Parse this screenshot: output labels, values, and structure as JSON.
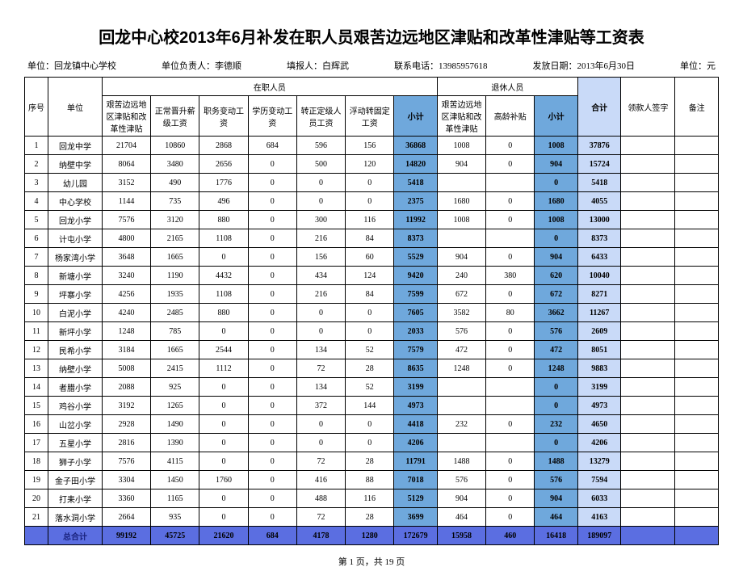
{
  "title": "回龙中心校2013年6月补发在职人员艰苦边远地区津贴和改革性津贴等工资表",
  "meta": {
    "org_label": "单位：回龙镇中心学校",
    "leader_label": "单位负责人：李德顺",
    "filler_label": "填报人：白辉武",
    "phone_label": "联系电话：13985957618",
    "date_label": "发放日期：2013年6月30日",
    "unit_label": "单位：元"
  },
  "headers": {
    "seq": "序号",
    "unit": "单位",
    "emp_group": "在职人员",
    "ret_group": "退休人员",
    "emp_cols": [
      "艰苦边远地区津贴和改革性津贴",
      "正常晋升薪级工资",
      "职务变动工资",
      "学历变动工资",
      "转正定级人员工资",
      "浮动转固定工资"
    ],
    "subtotal": "小计",
    "ret_cols": [
      "艰苦边远地区津贴和改革性津贴",
      "高龄补贴"
    ],
    "total": "合计",
    "sign": "领款人签字",
    "note": "备注"
  },
  "rows": [
    {
      "seq": "1",
      "unit": "回龙中学",
      "c": [
        "21704",
        "10860",
        "2868",
        "684",
        "596",
        "156"
      ],
      "sub1": "36868",
      "r": [
        "1008",
        "0"
      ],
      "sub2": "1008",
      "tot": "37876"
    },
    {
      "seq": "2",
      "unit": "纳壁中学",
      "c": [
        "8064",
        "3480",
        "2656",
        "0",
        "500",
        "120"
      ],
      "sub1": "14820",
      "r": [
        "904",
        "0"
      ],
      "sub2": "904",
      "tot": "15724"
    },
    {
      "seq": "3",
      "unit": "幼儿园",
      "c": [
        "3152",
        "490",
        "1776",
        "0",
        "0",
        "0"
      ],
      "sub1": "5418",
      "r": [
        "",
        ""
      ],
      "sub2": "0",
      "tot": "5418"
    },
    {
      "seq": "4",
      "unit": "中心学校",
      "c": [
        "1144",
        "735",
        "496",
        "0",
        "0",
        "0"
      ],
      "sub1": "2375",
      "r": [
        "1680",
        "0"
      ],
      "sub2": "1680",
      "tot": "4055"
    },
    {
      "seq": "5",
      "unit": "回龙小学",
      "c": [
        "7576",
        "3120",
        "880",
        "0",
        "300",
        "116"
      ],
      "sub1": "11992",
      "r": [
        "1008",
        "0"
      ],
      "sub2": "1008",
      "tot": "13000"
    },
    {
      "seq": "6",
      "unit": "计屯小学",
      "c": [
        "4800",
        "2165",
        "1108",
        "0",
        "216",
        "84"
      ],
      "sub1": "8373",
      "r": [
        "",
        ""
      ],
      "sub2": "0",
      "tot": "8373"
    },
    {
      "seq": "7",
      "unit": "杨家湾小学",
      "c": [
        "3648",
        "1665",
        "0",
        "0",
        "156",
        "60"
      ],
      "sub1": "5529",
      "r": [
        "904",
        "0"
      ],
      "sub2": "904",
      "tot": "6433"
    },
    {
      "seq": "8",
      "unit": "新塘小学",
      "c": [
        "3240",
        "1190",
        "4432",
        "0",
        "434",
        "124"
      ],
      "sub1": "9420",
      "r": [
        "240",
        "380"
      ],
      "sub2": "620",
      "tot": "10040"
    },
    {
      "seq": "9",
      "unit": "坪寨小学",
      "c": [
        "4256",
        "1935",
        "1108",
        "0",
        "216",
        "84"
      ],
      "sub1": "7599",
      "r": [
        "672",
        "0"
      ],
      "sub2": "672",
      "tot": "8271"
    },
    {
      "seq": "10",
      "unit": "白泥小学",
      "c": [
        "4240",
        "2485",
        "880",
        "0",
        "0",
        "0"
      ],
      "sub1": "7605",
      "r": [
        "3582",
        "80"
      ],
      "sub2": "3662",
      "tot": "11267"
    },
    {
      "seq": "11",
      "unit": "新坪小学",
      "c": [
        "1248",
        "785",
        "0",
        "0",
        "0",
        "0"
      ],
      "sub1": "2033",
      "r": [
        "576",
        "0"
      ],
      "sub2": "576",
      "tot": "2609"
    },
    {
      "seq": "12",
      "unit": "民希小学",
      "c": [
        "3184",
        "1665",
        "2544",
        "0",
        "134",
        "52"
      ],
      "sub1": "7579",
      "r": [
        "472",
        "0"
      ],
      "sub2": "472",
      "tot": "8051"
    },
    {
      "seq": "13",
      "unit": "纳壁小学",
      "c": [
        "5008",
        "2415",
        "1112",
        "0",
        "72",
        "28"
      ],
      "sub1": "8635",
      "r": [
        "1248",
        "0"
      ],
      "sub2": "1248",
      "tot": "9883"
    },
    {
      "seq": "14",
      "unit": "者腊小学",
      "c": [
        "2088",
        "925",
        "0",
        "0",
        "134",
        "52"
      ],
      "sub1": "3199",
      "r": [
        "",
        ""
      ],
      "sub2": "0",
      "tot": "3199"
    },
    {
      "seq": "15",
      "unit": "鸡谷小学",
      "c": [
        "3192",
        "1265",
        "0",
        "0",
        "372",
        "144"
      ],
      "sub1": "4973",
      "r": [
        "",
        ""
      ],
      "sub2": "0",
      "tot": "4973"
    },
    {
      "seq": "16",
      "unit": "山岔小学",
      "c": [
        "2928",
        "1490",
        "0",
        "0",
        "0",
        "0"
      ],
      "sub1": "4418",
      "r": [
        "232",
        "0"
      ],
      "sub2": "232",
      "tot": "4650"
    },
    {
      "seq": "17",
      "unit": "五星小学",
      "c": [
        "2816",
        "1390",
        "0",
        "0",
        "0",
        "0"
      ],
      "sub1": "4206",
      "r": [
        "",
        ""
      ],
      "sub2": "0",
      "tot": "4206"
    },
    {
      "seq": "18",
      "unit": "狮子小学",
      "c": [
        "7576",
        "4115",
        "0",
        "0",
        "72",
        "28"
      ],
      "sub1": "11791",
      "r": [
        "1488",
        "0"
      ],
      "sub2": "1488",
      "tot": "13279"
    },
    {
      "seq": "19",
      "unit": "金子田小学",
      "c": [
        "3304",
        "1450",
        "1760",
        "0",
        "416",
        "88"
      ],
      "sub1": "7018",
      "r": [
        "576",
        "0"
      ],
      "sub2": "576",
      "tot": "7594"
    },
    {
      "seq": "20",
      "unit": "打耒小学",
      "c": [
        "3360",
        "1165",
        "0",
        "0",
        "488",
        "116"
      ],
      "sub1": "5129",
      "r": [
        "904",
        "0"
      ],
      "sub2": "904",
      "tot": "6033"
    },
    {
      "seq": "21",
      "unit": "落水洞小学",
      "c": [
        "2664",
        "935",
        "0",
        "0",
        "72",
        "28"
      ],
      "sub1": "3699",
      "r": [
        "464",
        "0"
      ],
      "sub2": "464",
      "tot": "4163"
    }
  ],
  "total_row": {
    "label": "总合计",
    "c": [
      "99192",
      "45725",
      "21620",
      "684",
      "4178",
      "1280"
    ],
    "sub1": "172679",
    "r": [
      "15958",
      "460"
    ],
    "sub2": "16418",
    "tot": "189097"
  },
  "pager": "第 1 页，共 19 页",
  "colors": {
    "subtotal_bg": "#6fa8dc",
    "grandtotal_bg": "#c9daf8",
    "totalrow_bg": "#5b6ee1"
  }
}
